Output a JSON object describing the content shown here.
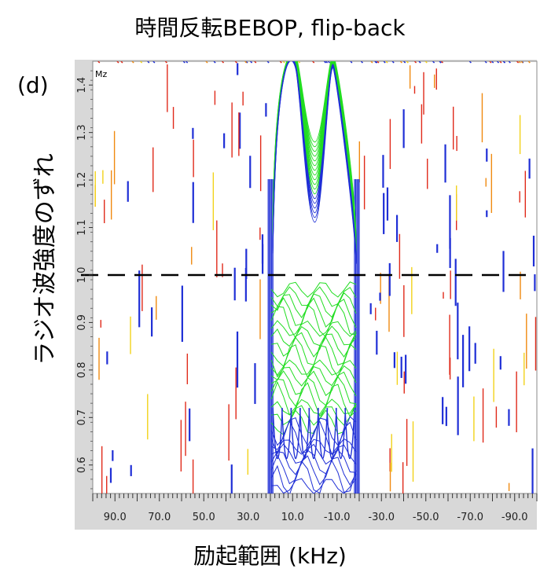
{
  "title": "時間反転BEBOP, flip-back",
  "panel_label": "(d)",
  "chart_data": {
    "type": "contour",
    "xlabel": "励起範囲 (kHz)",
    "ylabel": "ラジオ波強度のずれ",
    "corner_label": "Mz",
    "x_reversed": true,
    "xlim": [
      100,
      -100
    ],
    "ylim": [
      0.54,
      1.45
    ],
    "x_ticks": [
      "90.0",
      "70.0",
      "50.0",
      "30.0",
      "10.0",
      "-10.0",
      "-30.0",
      "-50.0",
      "-70.0",
      "-90.0"
    ],
    "x_tick_values": [
      90,
      70,
      50,
      30,
      10,
      -10,
      -30,
      -50,
      -70,
      -90
    ],
    "y_ticks": [
      "0.6",
      "0.7",
      "0.8",
      "0.9",
      "1.0",
      "1.1",
      "1.2",
      "1.3",
      "1.4"
    ],
    "y_tick_values": [
      0.6,
      0.7,
      0.8,
      0.9,
      1.0,
      1.1,
      1.2,
      1.3,
      1.4
    ],
    "reference_line": {
      "y": 1.0,
      "style": "dashed",
      "color": "#000000"
    },
    "excitation_band": {
      "x_from": 21,
      "x_to": -20
    },
    "colors": {
      "frame_bg": "#d8d8d8",
      "green": "#22dd22",
      "blue": "#1f2fd6",
      "red": "#e02a1a",
      "orange": "#f08a10",
      "yellow": "#f2d21a"
    }
  }
}
